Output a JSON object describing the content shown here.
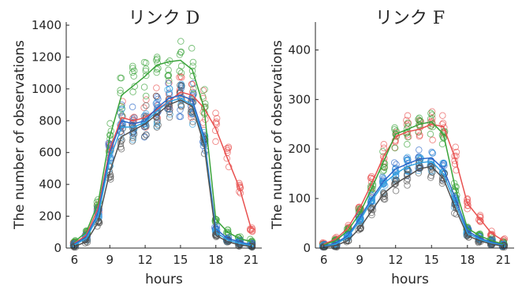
{
  "chart_data": [
    {
      "type": "scatter",
      "title": "リンク D",
      "xlabel": "hours",
      "ylabel": "The number of observations",
      "xlim": [
        5.3,
        21.9
      ],
      "ylim": [
        0,
        1400
      ],
      "xticks": [
        6,
        9,
        12,
        15,
        18,
        21
      ],
      "yticks": [
        0,
        200,
        400,
        600,
        800,
        1000,
        1200,
        1400
      ],
      "grid": false,
      "x": [
        6,
        7,
        8,
        9,
        10,
        11,
        12,
        13,
        14,
        15,
        16,
        17,
        18,
        19,
        20,
        21
      ],
      "series": [
        {
          "color": "#e8504f",
          "values": [
            30,
            80,
            250,
            620,
            820,
            800,
            820,
            870,
            920,
            980,
            960,
            880,
            750,
            560,
            380,
            120
          ]
        },
        {
          "color": "#39a339",
          "values": [
            40,
            100,
            280,
            700,
            960,
            1020,
            1080,
            1150,
            1170,
            1180,
            1120,
            880,
            180,
            100,
            60,
            40
          ]
        },
        {
          "color": "#2a66c8",
          "values": [
            25,
            70,
            220,
            600,
            800,
            780,
            800,
            880,
            940,
            960,
            930,
            700,
            120,
            60,
            40,
            20
          ]
        },
        {
          "color": "#2fa0e0",
          "values": [
            20,
            60,
            200,
            560,
            760,
            760,
            790,
            860,
            920,
            940,
            900,
            680,
            100,
            50,
            30,
            15
          ]
        },
        {
          "color": "#505050",
          "values": [
            10,
            40,
            160,
            480,
            700,
            740,
            780,
            840,
            900,
            930,
            890,
            650,
            80,
            40,
            20,
            10
          ]
        }
      ]
    },
    {
      "type": "scatter",
      "title": "リンク F",
      "xlabel": "hours",
      "ylabel": "The number of observations",
      "xlim": [
        5.3,
        21.9
      ],
      "ylim": [
        0,
        450
      ],
      "xticks": [
        6,
        9,
        12,
        15,
        18,
        21
      ],
      "yticks": [
        0,
        100,
        200,
        300,
        400
      ],
      "grid": false,
      "x": [
        6,
        7,
        8,
        9,
        10,
        11,
        12,
        13,
        14,
        15,
        16,
        17,
        18,
        19,
        20,
        21
      ],
      "series": [
        {
          "color": "#e8504f",
          "values": [
            8,
            18,
            40,
            80,
            130,
            185,
            225,
            235,
            240,
            250,
            245,
            180,
            90,
            60,
            30,
            15
          ]
        },
        {
          "color": "#39a339",
          "values": [
            6,
            15,
            35,
            70,
            120,
            175,
            230,
            240,
            250,
            255,
            230,
            120,
            40,
            25,
            15,
            8
          ]
        },
        {
          "color": "#2a66c8",
          "values": [
            4,
            10,
            25,
            60,
            100,
            135,
            160,
            170,
            180,
            182,
            160,
            100,
            35,
            20,
            12,
            6
          ]
        },
        {
          "color": "#2fa0e0",
          "values": [
            3,
            8,
            22,
            55,
            95,
            130,
            150,
            165,
            172,
            175,
            150,
            90,
            30,
            18,
            10,
            5
          ]
        },
        {
          "color": "#505050",
          "values": [
            2,
            5,
            15,
            40,
            75,
            110,
            130,
            145,
            160,
            165,
            140,
            80,
            25,
            15,
            8,
            4
          ]
        }
      ]
    }
  ]
}
